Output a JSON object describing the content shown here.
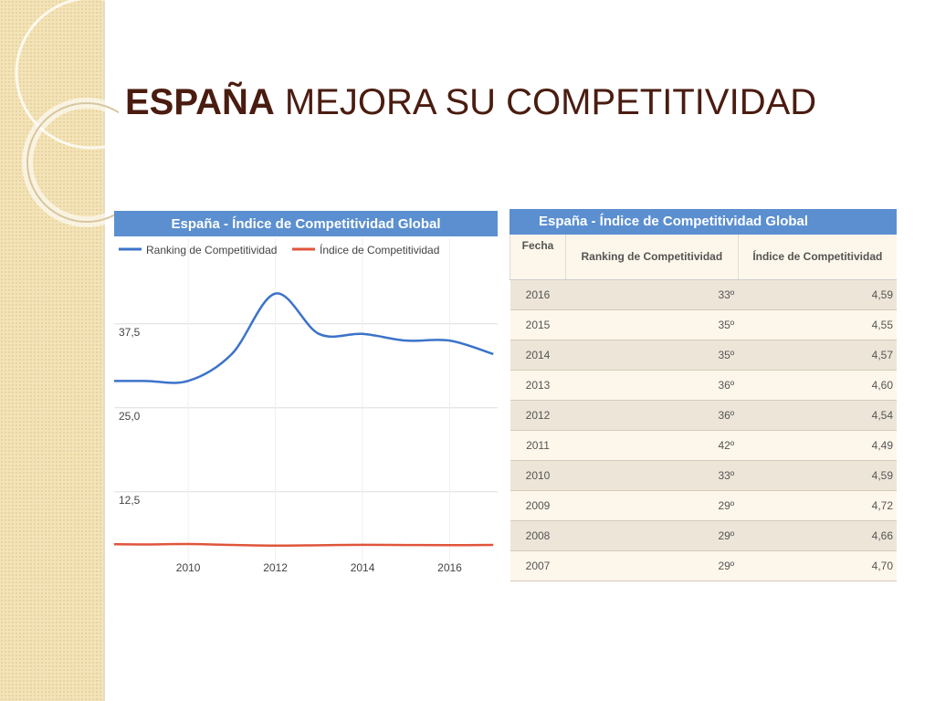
{
  "header": {
    "title_bold": "ESPAÑA",
    "title_rest": "MEJORA SU COMPETITIVIDAD"
  },
  "chart_data": {
    "type": "line",
    "title": "España - Índice de Competitividad Global",
    "x": [
      2008,
      2009,
      2010,
      2011,
      2012,
      2013,
      2014,
      2015,
      2016,
      2017
    ],
    "series": [
      {
        "name": "Ranking de Competitividad",
        "color": "#3b73c9",
        "values": [
          29,
          29,
          29,
          33,
          42,
          36,
          36,
          35,
          35,
          33
        ]
      },
      {
        "name": "Índice de Competitividad",
        "color": "#e0553b",
        "values": [
          4.7,
          4.66,
          4.72,
          4.59,
          4.49,
          4.54,
          4.6,
          4.57,
          4.55,
          4.59
        ]
      }
    ],
    "xlim": [
      2008.3,
      2017.1
    ],
    "xticks": [
      2010,
      2012,
      2014,
      2016
    ],
    "ylim": [
      3.5,
      46.3
    ],
    "yticks": [
      {
        "value": 12.5,
        "label": "12,5"
      },
      {
        "value": 25,
        "label": "25,0"
      },
      {
        "value": 37.5,
        "label": "37,5"
      }
    ],
    "grid": true,
    "legend": "top"
  },
  "table": {
    "title": "España - Índice de Competitividad Global",
    "columns": [
      "Fecha",
      "Ranking de Competitividad",
      "Índice de Competitividad"
    ],
    "rows": [
      [
        "2016",
        "33º",
        "4,59"
      ],
      [
        "2015",
        "35º",
        "4,55"
      ],
      [
        "2014",
        "35º",
        "4,57"
      ],
      [
        "2013",
        "36º",
        "4,60"
      ],
      [
        "2012",
        "36º",
        "4,54"
      ],
      [
        "2011",
        "42º",
        "4,49"
      ],
      [
        "2010",
        "33º",
        "4,59"
      ],
      [
        "2009",
        "29º",
        "4,72"
      ],
      [
        "2008",
        "29º",
        "4,66"
      ],
      [
        "2007",
        "29º",
        "4,70"
      ]
    ]
  }
}
